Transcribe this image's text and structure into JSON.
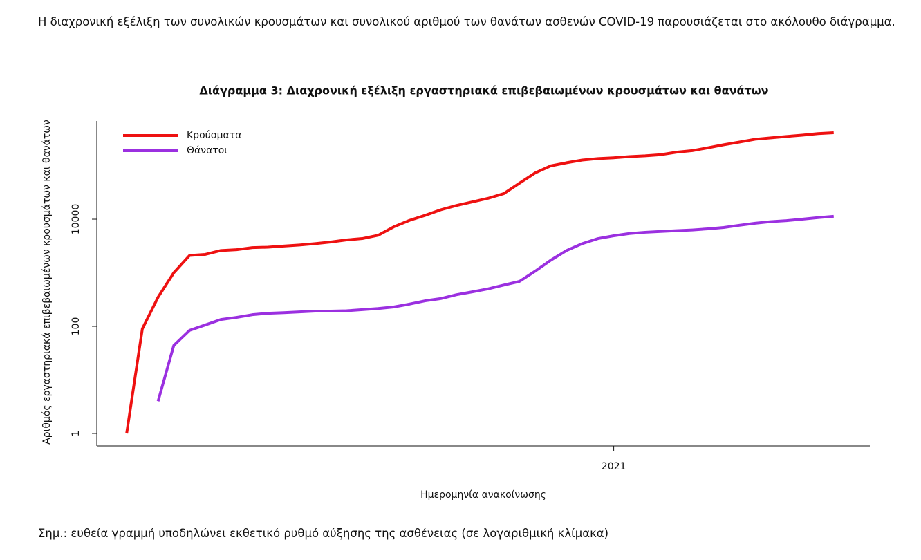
{
  "paragraph": "Η διαχρονική εξέλιξη των συνολικών κρουσμάτων και συνολικού αριθμού των θανάτων ασθενών COVID-19 παρουσιάζεται στο ακόλουθο διάγραμμα.",
  "note": "Σημ.: ευθεία γραμμή υποδηλώνει εκθετικό ρυθμό αύξησης της ασθένειας (σε λογαριθμική κλίμακα)",
  "chart_data": {
    "type": "line",
    "title": "Διάγραμμα 3: Διαχρονική εξέλιξη εργαστηριακά επιβεβαιωμένων κρουσμάτων και θανάτων",
    "x_label": "Ημερομηνία ανακοίνωσης",
    "y_label": "Αριθμός εργαστηριακά επιβεβαιωμένων κρουσμάτων και θανάτων",
    "log_scale": true,
    "legend": "top-left",
    "xlim": [
      -1.9,
      47.3
    ],
    "xticks": [
      {
        "value": 31,
        "label": "2021"
      }
    ],
    "ylim": [
      0.586,
      680000
    ],
    "yticks": [
      1,
      100,
      10000
    ],
    "series": [
      {
        "name": "Κρούσματα",
        "color": "#ee1111",
        "values": [
          1,
          90,
          350,
          1000,
          2100,
          2200,
          2600,
          2700,
          2950,
          3000,
          3150,
          3300,
          3500,
          3750,
          4100,
          4350,
          5000,
          7200,
          9500,
          11800,
          15000,
          18000,
          21000,
          24500,
          30000,
          47000,
          73000,
          99000,
          113000,
          127000,
          135000,
          140000,
          147000,
          152000,
          160000,
          178000,
          190000,
          215000,
          245000,
          275000,
          310000,
          330000,
          350000,
          370000,
          395000,
          410000
        ]
      },
      {
        "name": "Θάνατοι",
        "color": "#9b30e0",
        "values": [
          null,
          null,
          4,
          44,
          84,
          106,
          134,
          147,
          165,
          175,
          180,
          186,
          192,
          192,
          195,
          205,
          215,
          230,
          260,
          300,
          330,
          390,
          440,
          500,
          590,
          690,
          1070,
          1720,
          2600,
          3500,
          4350,
          4900,
          5400,
          5700,
          5900,
          6100,
          6300,
          6600,
          7000,
          7700,
          8400,
          9000,
          9400,
          10000,
          10700,
          11300
        ]
      }
    ]
  }
}
